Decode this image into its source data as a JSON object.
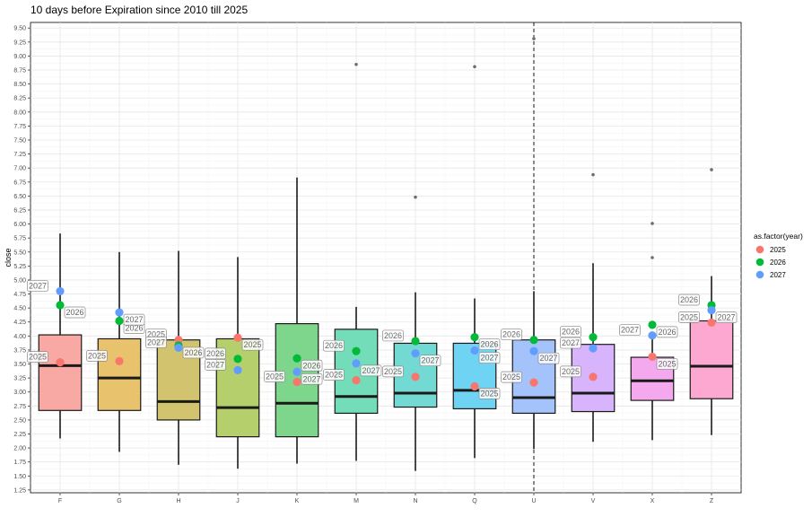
{
  "chart_data": {
    "type": "box",
    "title": "10 days before Expiration since 2010 till 2025",
    "xlabel": "",
    "ylabel": "close",
    "ylim": [
      1.2,
      9.6
    ],
    "yticks": [
      "1.25",
      "1.50",
      "1.75",
      "2.00",
      "2.25",
      "2.50",
      "2.75",
      "3.00",
      "3.25",
      "3.50",
      "3.75",
      "4.00",
      "4.25",
      "4.50",
      "4.75",
      "5.00",
      "5.25",
      "5.50",
      "5.75",
      "6.00",
      "6.25",
      "6.50",
      "6.75",
      "7.00",
      "7.25",
      "7.50",
      "7.75",
      "8.00",
      "8.25",
      "8.50",
      "8.75",
      "9.00",
      "9.25",
      "9.50"
    ],
    "categories": [
      "F",
      "G",
      "H",
      "J",
      "K",
      "M",
      "N",
      "Q",
      "U",
      "V",
      "X",
      "Z"
    ],
    "grid": true,
    "vline_category": "U",
    "boxes": [
      {
        "cat": "F",
        "fill": "#f8a9a3",
        "min": 2.17,
        "q1": 2.67,
        "median": 3.47,
        "q3": 4.02,
        "max": 5.83,
        "outliers": []
      },
      {
        "cat": "G",
        "fill": "#e9c26e",
        "min": 1.93,
        "q1": 2.67,
        "median": 3.25,
        "q3": 3.95,
        "max": 5.5,
        "outliers": []
      },
      {
        "cat": "H",
        "fill": "#d2c36f",
        "min": 1.7,
        "q1": 2.5,
        "median": 2.83,
        "q3": 3.93,
        "max": 5.52,
        "outliers": []
      },
      {
        "cat": "J",
        "fill": "#b5cf6c",
        "min": 1.63,
        "q1": 2.2,
        "median": 2.72,
        "q3": 3.95,
        "max": 5.41,
        "outliers": []
      },
      {
        "cat": "K",
        "fill": "#7ed68c",
        "min": 1.72,
        "q1": 2.2,
        "median": 2.8,
        "q3": 4.22,
        "max": 6.83,
        "outliers": []
      },
      {
        "cat": "M",
        "fill": "#72ddb8",
        "min": 1.77,
        "q1": 2.62,
        "median": 2.92,
        "q3": 4.12,
        "max": 4.52,
        "outliers": [
          8.85
        ]
      },
      {
        "cat": "N",
        "fill": "#72d9d3",
        "min": 1.59,
        "q1": 2.73,
        "median": 2.98,
        "q3": 3.87,
        "max": 4.78,
        "outliers": [
          6.48
        ]
      },
      {
        "cat": "Q",
        "fill": "#6fd3f3",
        "min": 1.82,
        "q1": 2.7,
        "median": 3.03,
        "q3": 3.87,
        "max": 4.67,
        "outliers": [
          8.81
        ]
      },
      {
        "cat": "U",
        "fill": "#a5c3fb",
        "min": 1.98,
        "q1": 2.62,
        "median": 2.9,
        "q3": 3.93,
        "max": 4.8,
        "outliers": [
          9.31
        ]
      },
      {
        "cat": "V",
        "fill": "#d8b4fc",
        "min": 2.11,
        "q1": 2.65,
        "median": 2.98,
        "q3": 3.85,
        "max": 5.3,
        "outliers": [
          6.88
        ]
      },
      {
        "cat": "X",
        "fill": "#f4a8ee",
        "min": 2.14,
        "q1": 2.85,
        "median": 3.2,
        "q3": 3.62,
        "max": 4.02,
        "outliers": [
          5.4,
          6.01
        ]
      },
      {
        "cat": "Z",
        "fill": "#fda8d0",
        "min": 2.23,
        "q1": 2.88,
        "median": 3.46,
        "q3": 4.27,
        "max": 5.07,
        "outliers": [
          6.97
        ]
      }
    ],
    "series": [
      {
        "name": "2025",
        "color": "#f8766d",
        "points": [
          {
            "cat": "F",
            "y": 3.53,
            "label": "2025",
            "label_side": "left"
          },
          {
            "cat": "G",
            "y": 3.55,
            "label": "2025",
            "label_side": "left"
          },
          {
            "cat": "H",
            "y": 3.93,
            "label": "2025",
            "label_side": "left"
          },
          {
            "cat": "J",
            "y": 3.97,
            "label": "2025",
            "label_side": "right"
          },
          {
            "cat": "K",
            "y": 3.18,
            "label": "2025",
            "label_side": "left"
          },
          {
            "cat": "M",
            "y": 3.21,
            "label": "2025",
            "label_side": "left"
          },
          {
            "cat": "N",
            "y": 3.27,
            "label": "2025",
            "label_side": "left"
          },
          {
            "cat": "Q",
            "y": 3.1,
            "label": "2025",
            "label_side": "right"
          },
          {
            "cat": "U",
            "y": 3.17,
            "label": "2025",
            "label_side": "left"
          },
          {
            "cat": "V",
            "y": 3.27,
            "label": "2025",
            "label_side": "left"
          },
          {
            "cat": "X",
            "y": 3.63,
            "label": "2025",
            "label_side": "right"
          },
          {
            "cat": "Z",
            "y": 4.24,
            "label": "2025",
            "label_side": "left"
          }
        ]
      },
      {
        "name": "2026",
        "color": "#00ba38",
        "points": [
          {
            "cat": "F",
            "y": 4.55,
            "label": "2026",
            "label_side": "right"
          },
          {
            "cat": "G",
            "y": 4.27,
            "label": "2026",
            "label_side": "right"
          },
          {
            "cat": "H",
            "y": 3.83,
            "label": "2026",
            "label_side": "right"
          },
          {
            "cat": "J",
            "y": 3.59,
            "label": "2026",
            "label_side": "left"
          },
          {
            "cat": "K",
            "y": 3.6,
            "label": "2026",
            "label_side": "right"
          },
          {
            "cat": "M",
            "y": 3.73,
            "label": "2026",
            "label_side": "left"
          },
          {
            "cat": "N",
            "y": 3.91,
            "label": "2026",
            "label_side": "left"
          },
          {
            "cat": "Q",
            "y": 3.98,
            "label": "2026",
            "label_side": "right"
          },
          {
            "cat": "U",
            "y": 3.93,
            "label": "2026",
            "label_side": "left"
          },
          {
            "cat": "V",
            "y": 3.98,
            "label": "2026",
            "label_side": "left"
          },
          {
            "cat": "X",
            "y": 4.2,
            "label": "2026",
            "label_side": "right"
          },
          {
            "cat": "Z",
            "y": 4.55,
            "label": "2026",
            "label_side": "left"
          }
        ]
      },
      {
        "name": "2027",
        "color": "#619cff",
        "points": [
          {
            "cat": "F",
            "y": 4.8,
            "label": "2027",
            "label_side": "left"
          },
          {
            "cat": "G",
            "y": 4.42,
            "label": "2027",
            "label_side": "right"
          },
          {
            "cat": "H",
            "y": 3.79,
            "label": "2027",
            "label_side": "left"
          },
          {
            "cat": "J",
            "y": 3.39,
            "label": "2027",
            "label_side": "left"
          },
          {
            "cat": "K",
            "y": 3.36,
            "label": "2027",
            "label_side": "right"
          },
          {
            "cat": "M",
            "y": 3.51,
            "label": "2027",
            "label_side": "right"
          },
          {
            "cat": "N",
            "y": 3.69,
            "label": "2027",
            "label_side": "right"
          },
          {
            "cat": "Q",
            "y": 3.74,
            "label": "2027",
            "label_side": "right"
          },
          {
            "cat": "U",
            "y": 3.73,
            "label": "2027",
            "label_side": "right"
          },
          {
            "cat": "V",
            "y": 3.78,
            "label": "2027",
            "label_side": "left"
          },
          {
            "cat": "X",
            "y": 4.01,
            "label": "2027",
            "label_side": "left"
          },
          {
            "cat": "Z",
            "y": 4.46,
            "label": "2027",
            "label_side": "right"
          }
        ]
      }
    ],
    "legend": {
      "title": "as.factor(year)",
      "position": "right",
      "items": [
        "2025",
        "2026",
        "2027"
      ]
    }
  }
}
